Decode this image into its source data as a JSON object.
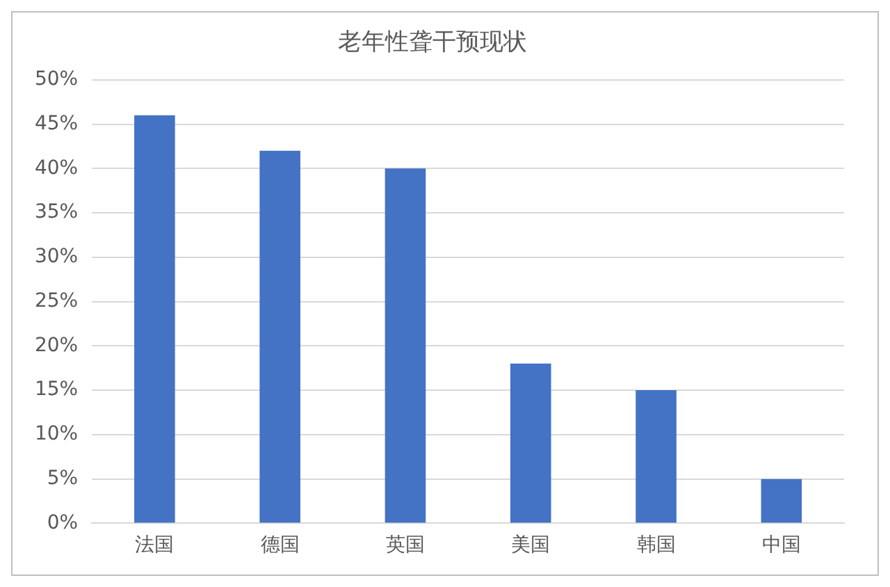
{
  "chart_data": {
    "type": "bar",
    "title": "老年性聋干预现状",
    "categories": [
      "法国",
      "德国",
      "英国",
      "美国",
      "韩国",
      "中国"
    ],
    "values": [
      46,
      42,
      40,
      18,
      15,
      5
    ],
    "color": "#4472c4",
    "ylim": [
      0,
      50
    ],
    "yticks": [
      {
        "value": 0,
        "label": "0%"
      },
      {
        "value": 5,
        "label": "5%"
      },
      {
        "value": 10,
        "label": "10%"
      },
      {
        "value": 15,
        "label": "15%"
      },
      {
        "value": 20,
        "label": "20%"
      },
      {
        "value": 25,
        "label": "25%"
      },
      {
        "value": 30,
        "label": "30%"
      },
      {
        "value": 35,
        "label": "35%"
      },
      {
        "value": 40,
        "label": "40%"
      },
      {
        "value": 45,
        "label": "45%"
      },
      {
        "value": 50,
        "label": "50%"
      }
    ],
    "grid": "y"
  }
}
